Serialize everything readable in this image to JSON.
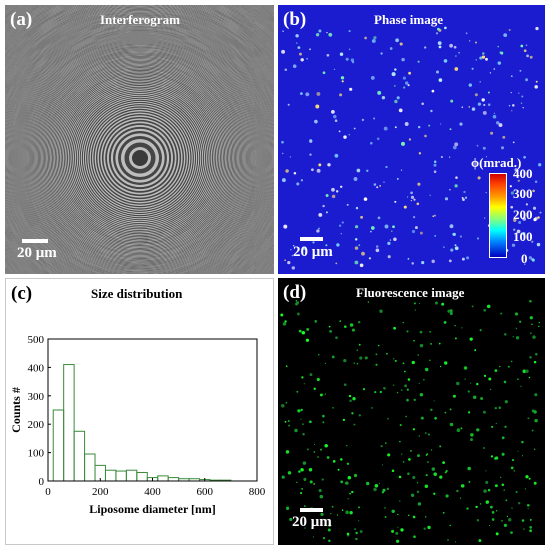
{
  "panel_a": {
    "label": "(a)",
    "title": "Interferogram",
    "scale_text": "20 μm"
  },
  "panel_b": {
    "label": "(b)",
    "title": "Phase image",
    "scale_text": "20 μm",
    "colorbar_title": "ϕ(mrad.)",
    "colorbar_ticks": [
      "400",
      "300",
      "200",
      "100",
      "0"
    ]
  },
  "panel_c": {
    "label": "(c)",
    "title": "Size distribution",
    "chart_data": {
      "type": "bar",
      "title": "Size distribution",
      "xlabel": "Liposome diameter [nm]",
      "ylabel": "Counts #",
      "xlim": [
        0,
        800
      ],
      "ylim": [
        0,
        500
      ],
      "x_ticks": [
        "0",
        "200",
        "400",
        "600",
        "800"
      ],
      "y_ticks": [
        "0",
        "100",
        "200",
        "300",
        "400",
        "500"
      ],
      "bin_width": 40,
      "bin_starts": [
        20,
        60,
        100,
        140,
        180,
        220,
        260,
        300,
        340,
        380,
        420,
        460,
        500,
        540,
        580,
        620,
        660
      ],
      "values": [
        250,
        410,
        175,
        95,
        55,
        38,
        35,
        38,
        30,
        12,
        18,
        12,
        8,
        8,
        5,
        3,
        3
      ],
      "bar_color": "#3a8a3a",
      "grid": false
    }
  },
  "panel_d": {
    "label": "(d)",
    "title": "Fluorescence image",
    "scale_text": "20 μm"
  },
  "colors": {
    "phase_background": "#1b1bd0",
    "fluorescence_dot": "#22ff44",
    "interferogram_gray": "#8a8a8a"
  }
}
